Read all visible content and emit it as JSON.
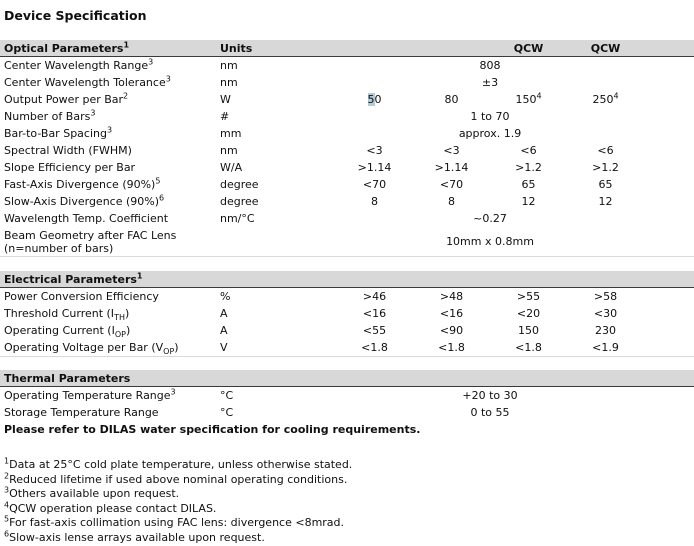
{
  "title": "Device Specification",
  "colors": {
    "band_bg": "#d8d8d8",
    "band_border": "#3a3a3a",
    "section_border": "#d9d9d9",
    "text": "#101010",
    "selection_highlight": "#b3cad7"
  },
  "optical": {
    "title": "Optical Parameters",
    "title_sup": "1",
    "units_header": "Units",
    "qcw1": "QCW",
    "qcw2": "QCW",
    "rows": [
      {
        "param": "Center Wavelength Range",
        "sup": "3",
        "units": "nm",
        "merged": "808"
      },
      {
        "param": "Center Wavelength Tolerance",
        "sup": "3",
        "units": "nm",
        "merged": "±3"
      },
      {
        "param": "Output Power per Bar",
        "sup": "2",
        "units": "W",
        "v1_hl": "5",
        "v1_rest": "0",
        "v2": "80",
        "v3": "150",
        "v3_sup": "4",
        "v4": "250",
        "v4_sup": "4"
      },
      {
        "param": "Number of Bars",
        "sup": "3",
        "units": "#",
        "merged": "1 to 70"
      },
      {
        "param": "Bar-to-Bar Spacing",
        "sup": "3",
        "units": "mm",
        "merged": "approx. 1.9"
      },
      {
        "param": "Spectral Width (FWHM)",
        "units": "nm",
        "v1": "<3",
        "v2": "<3",
        "v3": "<6",
        "v4": "<6"
      },
      {
        "param": "Slope Efficiency per Bar",
        "units": "W/A",
        "v1": ">1.14",
        "v2": ">1.14",
        "v3": ">1.2",
        "v4": ">1.2"
      },
      {
        "param": "Fast-Axis Divergence (90%)",
        "sup": "5",
        "units": "degree",
        "v1": "<70",
        "v2": "<70",
        "v3": "65",
        "v4": "65"
      },
      {
        "param": "Slow-Axis Divergence (90%)",
        "sup": "6",
        "units": "degree",
        "v1": "8",
        "v2": "8",
        "v3": "12",
        "v4": "12"
      },
      {
        "param": "Wavelength Temp. Coefficient",
        "units": "nm/°C",
        "merged": "~0.27"
      },
      {
        "param_line1": "Beam Geometry after FAC Lens",
        "param_line2": "(n=number of bars)",
        "units": "",
        "merged": "10mm x 0.8mm"
      }
    ]
  },
  "electrical": {
    "title": "Electrical Parameters",
    "title_sup": "1",
    "rows": [
      {
        "param": "Power Conversion Efficiency",
        "units": "%",
        "v1": ">46",
        "v2": ">48",
        "v3": ">55",
        "v4": ">58"
      },
      {
        "param_pre": "Threshold Current (I",
        "param_sub": "TH",
        "param_post": ")",
        "units": "A",
        "v1": "<16",
        "v2": "<16",
        "v3": "<20",
        "v4": "<30"
      },
      {
        "param_pre": "Operating Current (I",
        "param_sub": "OP",
        "param_post": ")",
        "units": "A",
        "v1": "<55",
        "v2": "<90",
        "v3": "150",
        "v4": "230"
      },
      {
        "param_pre": "Operating Voltage per Bar (V",
        "param_sub": "OP",
        "param_post": ")",
        "units": "V",
        "v1": "<1.8",
        "v2": "<1.8",
        "v3": "<1.8",
        "v4": "<1.9"
      }
    ]
  },
  "thermal": {
    "title": "Thermal Parameters",
    "rows": [
      {
        "param": "Operating Temperature Range",
        "sup": "3",
        "units": "°C",
        "merged": "+20 to 30"
      },
      {
        "param": "Storage Temperature Range",
        "units": "°C",
        "merged": "0 to 55"
      }
    ],
    "note": "Please refer to DILAS water specification for cooling requirements."
  },
  "footnotes": [
    {
      "sup": "1",
      "text": "Data at 25°C cold plate temperature, unless otherwise stated."
    },
    {
      "sup": "2",
      "text": "Reduced lifetime if used above nominal operating conditions."
    },
    {
      "sup": "3",
      "text": "Others available upon request."
    },
    {
      "sup": "4",
      "text": "QCW operation please contact DILAS."
    },
    {
      "sup": "5",
      "text": "For fast-axis collimation using FAC lens: divergence <8mrad."
    },
    {
      "sup": "6",
      "text": "Slow-axis lense arrays available upon request."
    }
  ]
}
